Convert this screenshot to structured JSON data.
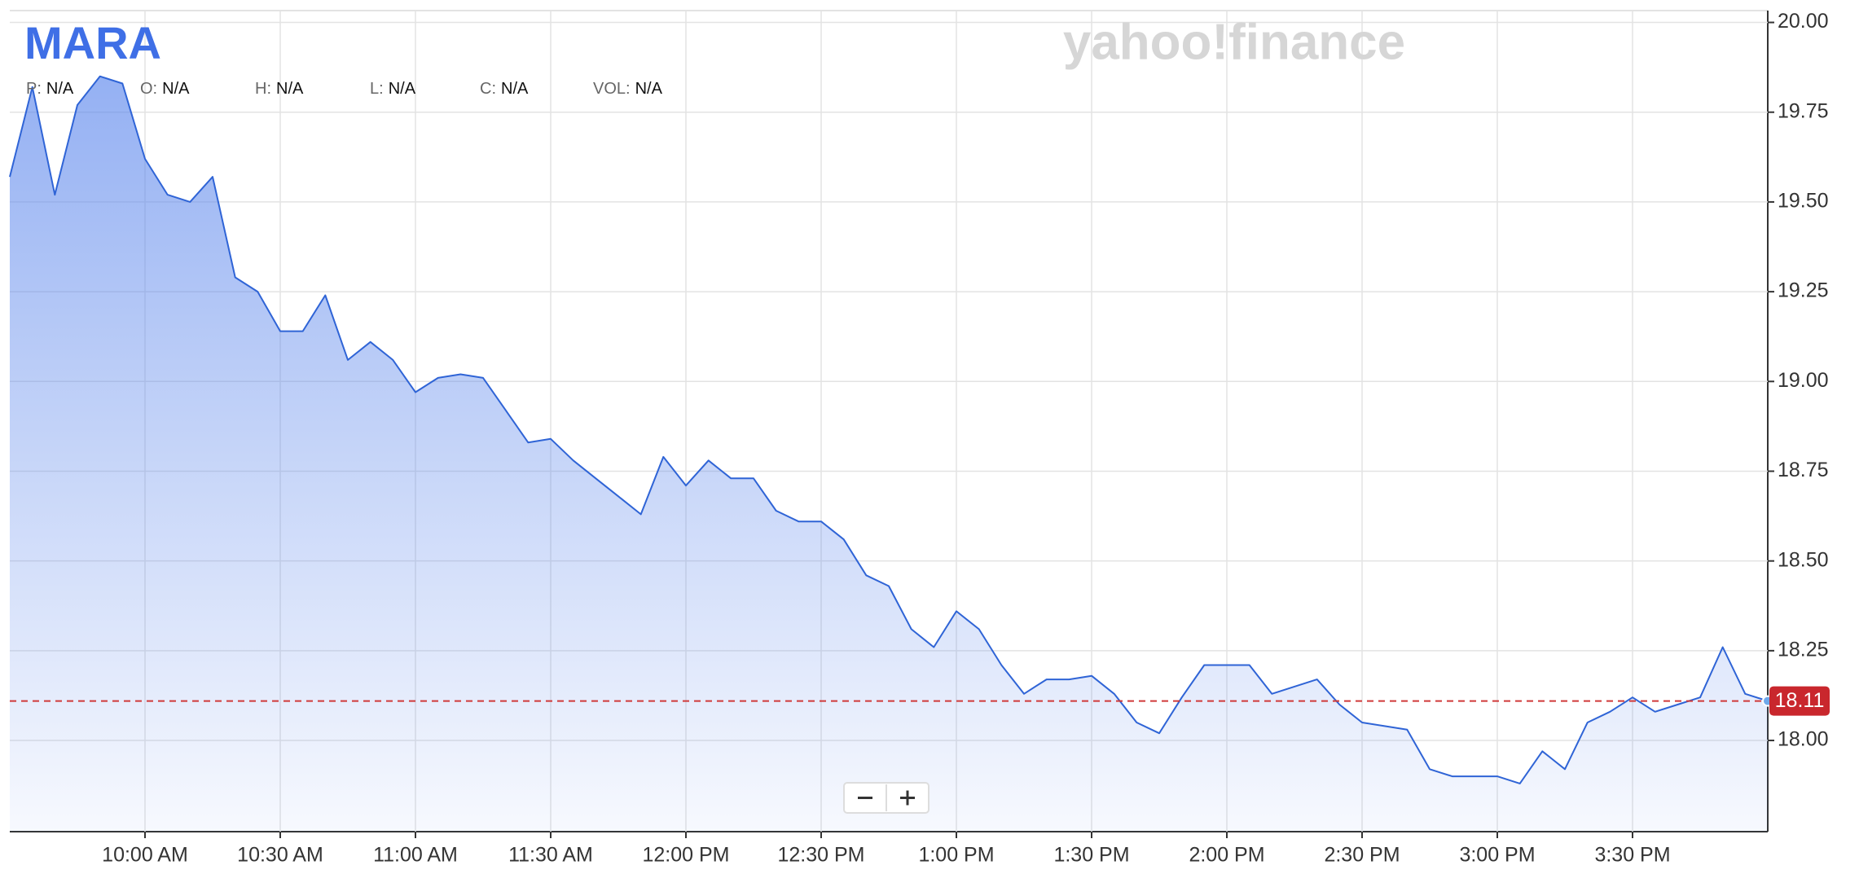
{
  "chart_data": {
    "type": "line",
    "title": "MARA",
    "watermark": "yahoo!finance",
    "ohlc": [
      {
        "label": "P:",
        "value": "N/A"
      },
      {
        "label": "O:",
        "value": "N/A"
      },
      {
        "label": "H:",
        "value": "N/A"
      },
      {
        "label": "L:",
        "value": "N/A"
      },
      {
        "label": "C:",
        "value": "N/A"
      },
      {
        "label": "VOL:",
        "value": "N/A"
      }
    ],
    "x": [
      570,
      575,
      580,
      585,
      590,
      595,
      600,
      605,
      610,
      615,
      620,
      625,
      630,
      635,
      640,
      645,
      650,
      655,
      660,
      665,
      670,
      675,
      680,
      685,
      690,
      695,
      700,
      705,
      710,
      715,
      720,
      725,
      730,
      735,
      740,
      745,
      750,
      755,
      760,
      765,
      770,
      775,
      780,
      785,
      790,
      795,
      800,
      805,
      810,
      815,
      820,
      825,
      830,
      835,
      840,
      845,
      850,
      855,
      860,
      865,
      870,
      875,
      880,
      885,
      890,
      895,
      900,
      905,
      910,
      915,
      920,
      925,
      930,
      935,
      940,
      945,
      950,
      955,
      960
    ],
    "series": [
      {
        "name": "MARA",
        "color": "#2f64d6",
        "values": [
          19.57,
          19.82,
          19.52,
          19.77,
          19.85,
          19.83,
          19.62,
          19.52,
          19.5,
          19.57,
          19.29,
          19.25,
          19.14,
          19.14,
          19.24,
          19.06,
          19.11,
          19.06,
          18.97,
          19.01,
          19.02,
          19.01,
          18.92,
          18.83,
          18.84,
          18.78,
          18.73,
          18.68,
          18.63,
          18.79,
          18.71,
          18.78,
          18.73,
          18.73,
          18.64,
          18.61,
          18.61,
          18.56,
          18.46,
          18.43,
          18.31,
          18.26,
          18.36,
          18.31,
          18.21,
          18.13,
          18.17,
          18.17,
          18.18,
          18.13,
          18.05,
          18.02,
          18.12,
          18.21,
          18.21,
          18.21,
          18.13,
          18.15,
          18.17,
          18.1,
          18.05,
          18.04,
          18.03,
          17.92,
          17.9,
          17.9,
          17.9,
          17.88,
          17.97,
          17.92,
          18.05,
          18.08,
          18.12,
          18.08,
          18.1,
          18.12,
          18.26,
          18.13,
          18.11
        ]
      }
    ],
    "current": 18.11,
    "fill": true,
    "grid": true,
    "xlim": [
      570,
      960
    ],
    "xticks": [
      {
        "value": 600,
        "label": "10:00 AM"
      },
      {
        "value": 630,
        "label": "10:30 AM"
      },
      {
        "value": 660,
        "label": "11:00 AM"
      },
      {
        "value": 690,
        "label": "11:30 AM"
      },
      {
        "value": 720,
        "label": "12:00 PM"
      },
      {
        "value": 750,
        "label": "12:30 PM"
      },
      {
        "value": 780,
        "label": "1:00 PM"
      },
      {
        "value": 810,
        "label": "1:30 PM"
      },
      {
        "value": 840,
        "label": "2:00 PM"
      },
      {
        "value": 870,
        "label": "2:30 PM"
      },
      {
        "value": 900,
        "label": "3:00 PM"
      },
      {
        "value": 930,
        "label": "3:30 PM"
      }
    ],
    "ylim": [
      17.746,
      20.033
    ],
    "yticks": [
      {
        "value": 18,
        "label": "18.00"
      },
      {
        "value": 18.25,
        "label": "18.25"
      },
      {
        "value": 18.5,
        "label": "18.50"
      },
      {
        "value": 18.75,
        "label": "18.75"
      },
      {
        "value": 19,
        "label": "19.00"
      },
      {
        "value": 19.25,
        "label": "19.25"
      },
      {
        "value": 19.5,
        "label": "19.50"
      },
      {
        "value": 19.75,
        "label": "19.75"
      },
      {
        "value": 20,
        "label": "20.00"
      }
    ]
  }
}
